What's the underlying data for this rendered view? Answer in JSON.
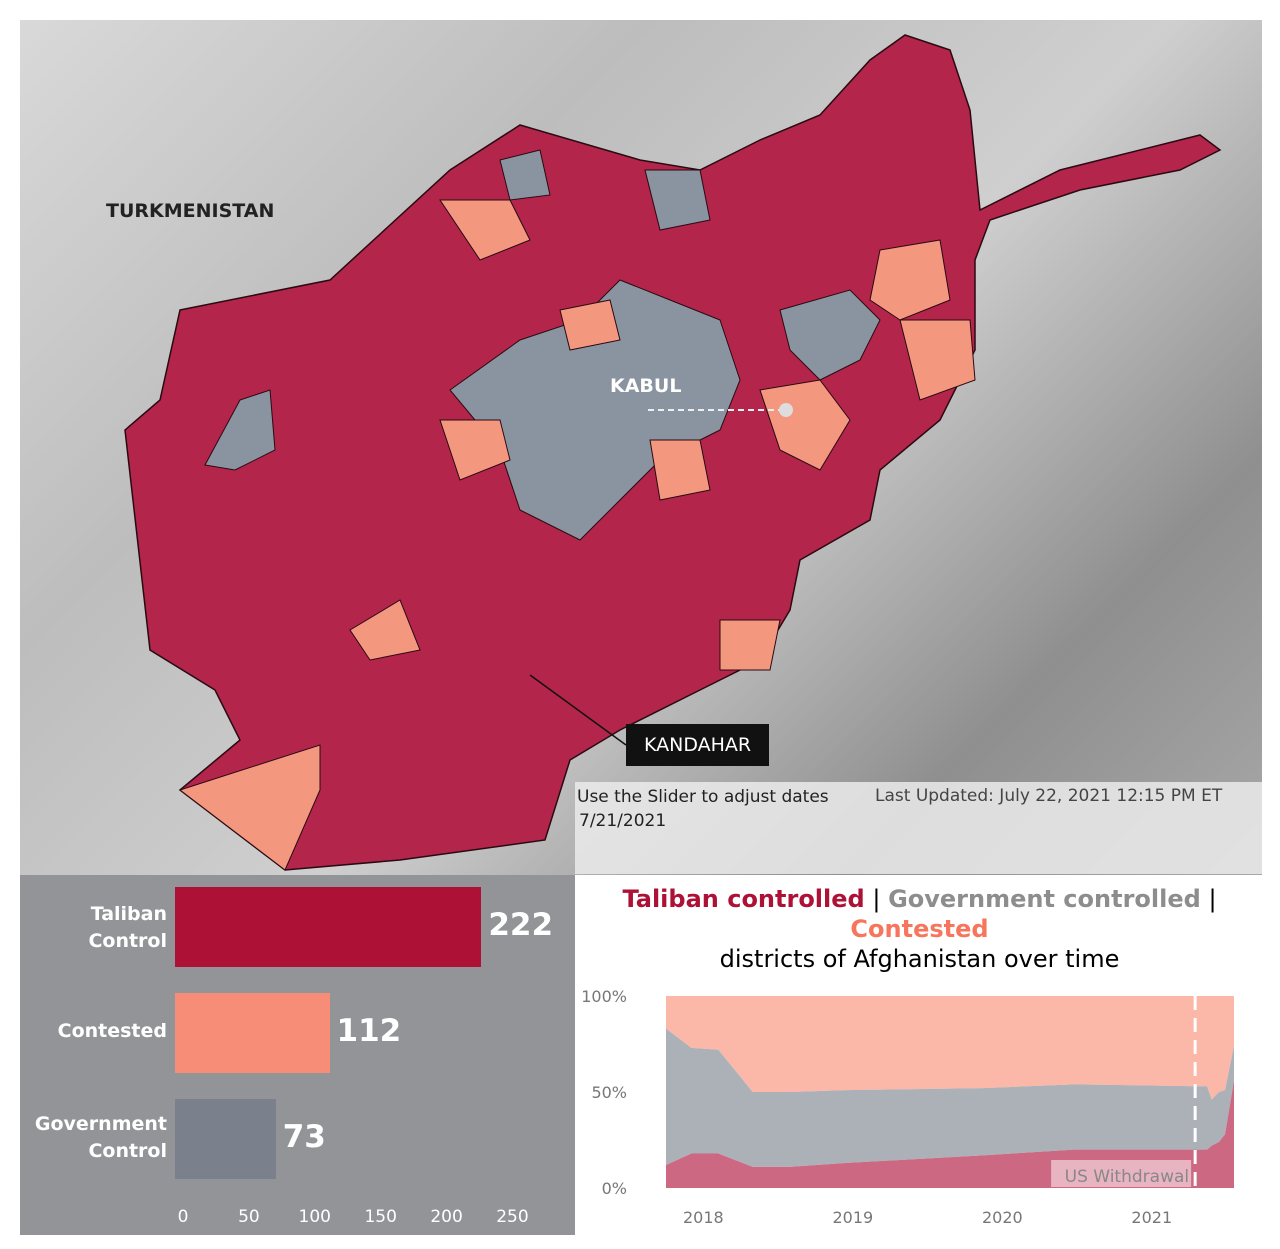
{
  "map": {
    "labels": {
      "turkmenistan": "TURKMENISTAN",
      "kabul": "KABUL",
      "kandahar": "KANDAHAR"
    },
    "slider_label": "Use the Slider to adjust dates",
    "slider_date": "7/21/2021",
    "last_updated": "Last Updated: July 22, 2021 12:15 PM ET"
  },
  "colors": {
    "taliban": "#ad1136",
    "contested": "#f78d76",
    "government": "#7b818c",
    "taliban_map": "#b3254a",
    "gov_map": "#8a94a0",
    "contested_map": "#f4977f"
  },
  "chart_data": [
    {
      "type": "bar",
      "orientation": "horizontal",
      "categories": [
        "Taliban Control",
        "Contested",
        "Government Control"
      ],
      "category_lines": [
        [
          "Taliban",
          "Control"
        ],
        [
          "Contested"
        ],
        [
          "Government",
          "Control"
        ]
      ],
      "values": [
        222,
        112,
        73
      ],
      "xlim": [
        0,
        250
      ],
      "xticks": [
        "0",
        "50",
        "100",
        "150",
        "200",
        "250"
      ]
    },
    {
      "type": "area",
      "title_parts": [
        "Taliban controlled",
        " | ",
        "Government controlled",
        " |",
        "Contested",
        "districts of Afghanistan over time"
      ],
      "x": [
        2017.75,
        2017.92,
        2018.1,
        2018.33,
        2018.58,
        2018.95,
        2019.87,
        2020.48,
        2021.29,
        2021.37,
        2021.4,
        2021.45,
        2021.49,
        2021.55
      ],
      "series": [
        {
          "name": "Taliban controlled",
          "values": [
            12,
            18,
            18,
            11,
            11,
            13,
            17,
            20,
            20,
            20,
            22,
            24,
            28,
            56
          ]
        },
        {
          "name": "Government controlled",
          "values": [
            71,
            55,
            54,
            39,
            39,
            38,
            35,
            34,
            33,
            33,
            24,
            26,
            23,
            18
          ]
        },
        {
          "name": "Contested",
          "values": [
            17,
            27,
            28,
            50,
            50,
            49,
            48,
            46,
            47,
            47,
            54,
            50,
            49,
            26
          ]
        }
      ],
      "ylim": [
        0,
        100
      ],
      "yticks": [
        "0%",
        "50%",
        "100%"
      ],
      "xticks": [
        "2018",
        "2019",
        "2020",
        "2021"
      ],
      "annotation": {
        "label": "US Withdrawal",
        "x": 2021.29
      }
    }
  ]
}
